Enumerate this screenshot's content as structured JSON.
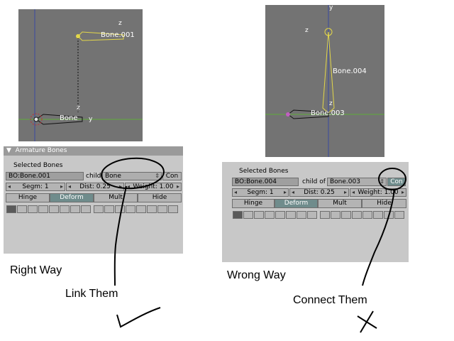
{
  "left": {
    "viewport": {
      "bone_top_label": "Bone.001",
      "bone_bottom_label": "Bone",
      "axis_z_top": "z",
      "axis_z_mid": "z",
      "axis_y": "y"
    },
    "panel": {
      "title": "Armature Bones",
      "selected_label": "Selected Bones",
      "bone_name": "BO:Bone.001",
      "child_of_label": "child of",
      "parent_value": "Bone",
      "con_label": "Con",
      "segm": "Segm: 1",
      "dist": "Dist: 0.25",
      "weight": "Weight: 1.00",
      "hinge": "Hinge",
      "deform": "Deform",
      "mult": "Mult",
      "hide": "Hide"
    },
    "caption": "Right Way",
    "annotation": "Link Them"
  },
  "right": {
    "viewport": {
      "bone_top_label": "Bone.004",
      "bone_bottom_label": "Bone.003",
      "axis_y": "y",
      "axis_z_left": "z",
      "axis_z_mid": "z"
    },
    "panel": {
      "selected_label": "Selected Bones",
      "bone_name": "BO:Bone.004",
      "child_of_label": "child of",
      "parent_value": "Bone.003",
      "con_label": "Con",
      "segm": "Segm: 1",
      "dist": "Dist: 0.25",
      "weight": "Weight: 1.00",
      "hinge": "Hinge",
      "deform": "Deform",
      "mult": "Mult",
      "hide": "Hide"
    },
    "caption": "Wrong Way",
    "annotation": "Connect Them"
  },
  "colors": {
    "viewport_bg": "#737373",
    "panel_bg": "#c8c8c8",
    "bone_selected": "#e3d74a",
    "bone_unselected": "#1a1a1a",
    "axis_x": "#5fae3a",
    "axis_y": "#3a4aa0",
    "button_on": "#6f8c8c"
  }
}
